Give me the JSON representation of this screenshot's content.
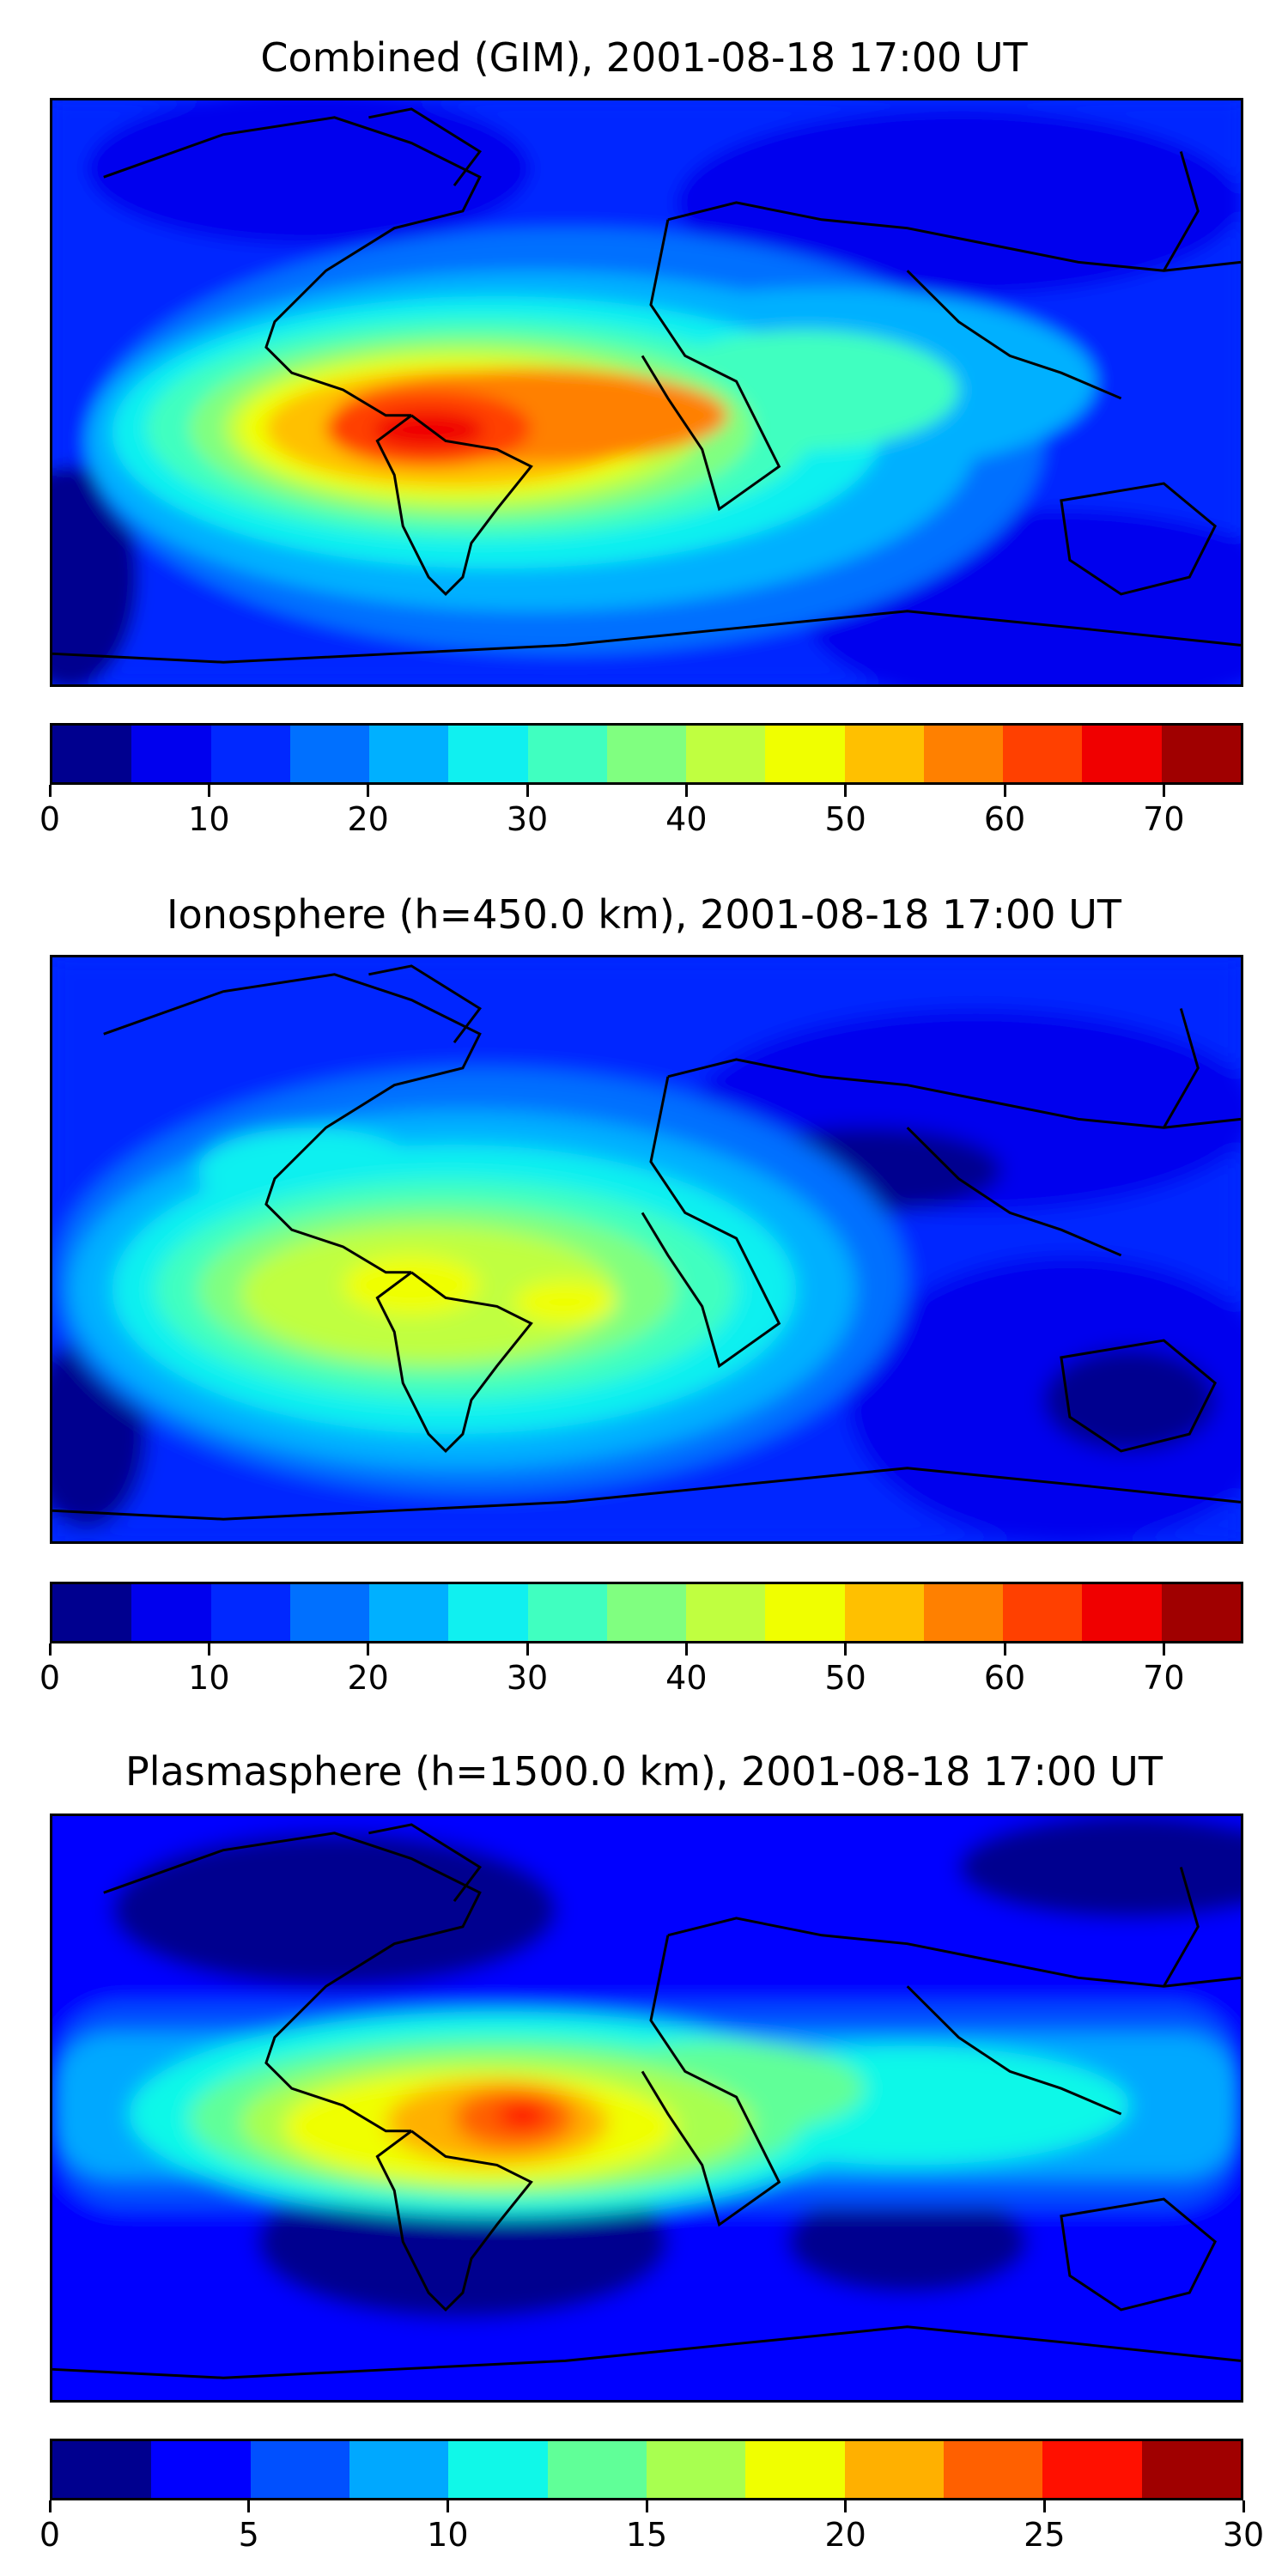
{
  "chart_data": [
    {
      "type": "heatmap",
      "title": "Combined (GIM), 2001-08-18 17:00 UT",
      "colorbar": {
        "levels": [
          0,
          5,
          10,
          15,
          20,
          25,
          30,
          35,
          40,
          45,
          50,
          55,
          60,
          65,
          70,
          75
        ],
        "tick_labels": [
          "0",
          "10",
          "20",
          "30",
          "40",
          "50",
          "60",
          "70"
        ],
        "tick_values": [
          0,
          10,
          20,
          30,
          40,
          50,
          60,
          70
        ],
        "colors": [
          "#00008f",
          "#0000ee",
          "#0028ff",
          "#0070ff",
          "#00b0ff",
          "#10f0f0",
          "#40ffc0",
          "#80ff80",
          "#c0ff40",
          "#f0ff00",
          "#ffc000",
          "#ff8000",
          "#ff4000",
          "#f00000",
          "#a00000"
        ]
      },
      "peak_value": 72,
      "peak_region": "South America / tropical Atlantic"
    },
    {
      "type": "heatmap",
      "title": "Ionosphere  (h=450.0 km), 2001-08-18 17:00 UT",
      "colorbar": {
        "levels": [
          0,
          5,
          10,
          15,
          20,
          25,
          30,
          35,
          40,
          45,
          50,
          55,
          60,
          65,
          70,
          75
        ],
        "tick_labels": [
          "0",
          "10",
          "20",
          "30",
          "40",
          "50",
          "60",
          "70"
        ],
        "tick_values": [
          0,
          10,
          20,
          30,
          40,
          50,
          60,
          70
        ],
        "colors": [
          "#00008f",
          "#0000ee",
          "#0028ff",
          "#0070ff",
          "#00b0ff",
          "#10f0f0",
          "#40ffc0",
          "#80ff80",
          "#c0ff40",
          "#f0ff00",
          "#ffc000",
          "#ff8000",
          "#ff4000",
          "#f00000",
          "#a00000"
        ]
      },
      "peak_value": 47,
      "peak_region": "South America / South Atlantic"
    },
    {
      "type": "heatmap",
      "title": "Plasmasphere (h=1500.0 km), 2001-08-18 17:00 UT",
      "colorbar": {
        "levels": [
          0,
          2.5,
          5,
          7.5,
          10,
          12.5,
          15,
          17.5,
          20,
          22.5,
          25,
          27.5,
          30
        ],
        "tick_labels": [
          "0",
          "5",
          "10",
          "15",
          "20",
          "25",
          "30"
        ],
        "tick_values": [
          0,
          5,
          10,
          15,
          20,
          25,
          30
        ],
        "colors": [
          "#00008f",
          "#0000ff",
          "#0050ff",
          "#00a8ff",
          "#10f8e8",
          "#60ff98",
          "#a8ff50",
          "#f0ff00",
          "#ffb000",
          "#ff6000",
          "#ff1000",
          "#a00000"
        ]
      },
      "peak_value": 26,
      "peak_region": "Northern South America"
    }
  ]
}
